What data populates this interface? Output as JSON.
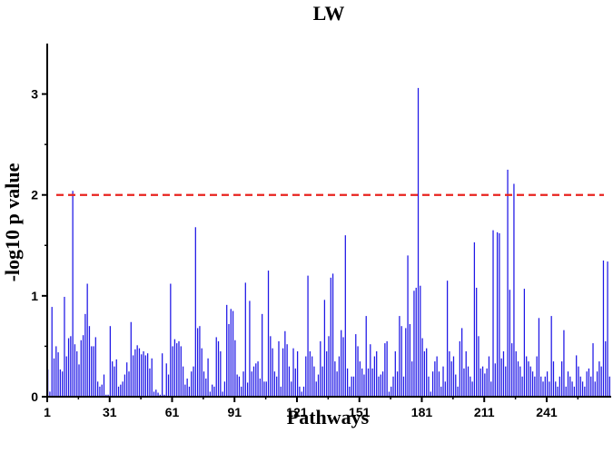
{
  "chart_data": {
    "type": "bar",
    "title": "LW",
    "xlabel": "Pathways",
    "ylabel": "-log10 p value",
    "xlim": [
      1,
      270
    ],
    "ylim": [
      0,
      3.5
    ],
    "x_ticks": [
      1,
      31,
      61,
      91,
      121,
      151,
      181,
      211,
      241
    ],
    "y_ticks": [
      0,
      1,
      2,
      3
    ],
    "threshold": {
      "value": 2.0,
      "color": "#e8231f",
      "style": "dashed"
    },
    "bar_color": "#1f17e6",
    "grid": false,
    "values": [
      0.27,
      0.05,
      0.89,
      0.38,
      0.5,
      0.44,
      0.27,
      0.25,
      0.99,
      0.4,
      0.58,
      0.6,
      2.04,
      0.52,
      0.45,
      0.32,
      0.56,
      0.61,
      0.82,
      1.12,
      0.7,
      0.5,
      0.5,
      0.59,
      0.15,
      0.1,
      0.12,
      0.22,
      0.02,
      0.02,
      0.7,
      0.35,
      0.3,
      0.37,
      0.1,
      0.12,
      0.15,
      0.22,
      0.34,
      0.25,
      0.74,
      0.41,
      0.47,
      0.51,
      0.48,
      0.42,
      0.45,
      0.41,
      0.43,
      0.28,
      0.38,
      0.05,
      0.07,
      0.04,
      0.02,
      0.43,
      0.02,
      0.33,
      0.22,
      1.12,
      0.5,
      0.57,
      0.53,
      0.55,
      0.5,
      0.3,
      0.12,
      0.18,
      0.1,
      0.25,
      0.3,
      1.68,
      0.68,
      0.7,
      0.48,
      0.25,
      0.18,
      0.38,
      0.05,
      0.12,
      0.1,
      0.59,
      0.55,
      0.45,
      0.05,
      0.15,
      0.91,
      0.72,
      0.87,
      0.85,
      0.56,
      0.22,
      0.2,
      0.1,
      0.25,
      1.13,
      0.14,
      0.95,
      0.25,
      0.3,
      0.33,
      0.35,
      0.18,
      0.82,
      0.15,
      0.15,
      1.25,
      0.6,
      0.48,
      0.25,
      0.2,
      0.55,
      0.1,
      0.48,
      0.65,
      0.52,
      0.3,
      0.15,
      0.48,
      0.28,
      0.45,
      0.1,
      0.05,
      0.1,
      0.4,
      1.2,
      0.45,
      0.4,
      0.3,
      0.15,
      0.22,
      0.55,
      0.3,
      0.96,
      0.45,
      0.6,
      1.18,
      1.22,
      0.35,
      0.25,
      0.4,
      0.66,
      0.59,
      1.6,
      0.28,
      0.1,
      0.2,
      0.2,
      0.62,
      0.5,
      0.35,
      0.28,
      0.22,
      0.8,
      0.28,
      0.52,
      0.28,
      0.4,
      0.45,
      0.2,
      0.22,
      0.25,
      0.53,
      0.55,
      0.05,
      0.1,
      0.2,
      0.45,
      0.25,
      0.8,
      0.7,
      0.2,
      0.68,
      1.4,
      0.72,
      0.35,
      1.05,
      1.08,
      3.06,
      1.1,
      0.58,
      0.45,
      0.48,
      0.2,
      0.05,
      0.25,
      0.35,
      0.4,
      0.25,
      0.1,
      0.3,
      0.15,
      1.15,
      0.45,
      0.35,
      0.4,
      0.22,
      0.1,
      0.55,
      0.68,
      0.28,
      0.45,
      0.3,
      0.2,
      0.15,
      1.53,
      1.08,
      0.6,
      0.28,
      0.3,
      0.23,
      0.28,
      0.4,
      0.15,
      1.65,
      0.33,
      1.63,
      1.62,
      0.38,
      0.45,
      0.3,
      2.25,
      1.06,
      0.53,
      2.11,
      0.45,
      0.35,
      0.3,
      0.2,
      1.07,
      0.4,
      0.35,
      0.3,
      0.25,
      0.2,
      0.4,
      0.78,
      0.2,
      0.15,
      0.2,
      0.25,
      0.15,
      0.8,
      0.35,
      0.15,
      0.1,
      0.2,
      0.35,
      0.66,
      0.1,
      0.25,
      0.2,
      0.15,
      0.1,
      0.41,
      0.3,
      0.2,
      0.15,
      0.1,
      0.25,
      0.28,
      0.2,
      0.53,
      0.15,
      0.25,
      0.35,
      0.3,
      1.35,
      0.55,
      1.34,
      0.2
    ]
  }
}
